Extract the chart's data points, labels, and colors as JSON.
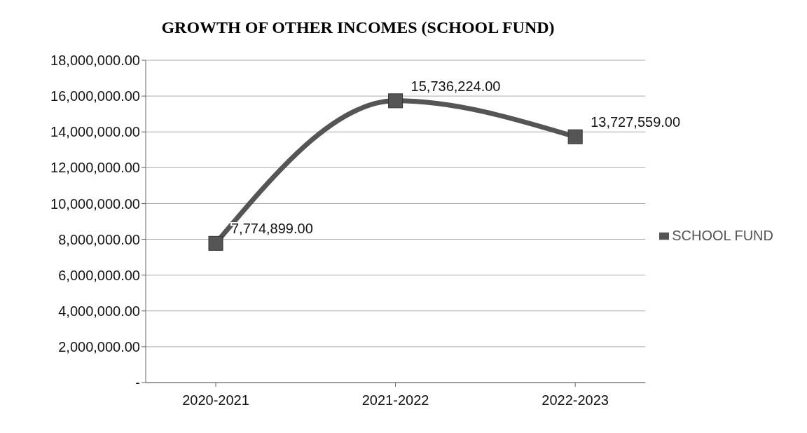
{
  "chart_data": {
    "type": "line",
    "title": "GROWTH OF OTHER INCOMES (SCHOOL FUND)",
    "categories": [
      "2020-2021",
      "2021-2022",
      "2022-2023"
    ],
    "series": [
      {
        "name": "SCHOOL FUND",
        "color": "#555555",
        "values": [
          7774899,
          15736224,
          13727559
        ],
        "value_labels": [
          "7,774,899.00",
          "15,736,224.00",
          "13,727,559.00"
        ]
      }
    ],
    "ylim": [
      0,
      18000000
    ],
    "yticks": [
      {
        "value": 0,
        "label": "-"
      },
      {
        "value": 2000000,
        "label": "2,000,000.00"
      },
      {
        "value": 4000000,
        "label": "4,000,000.00"
      },
      {
        "value": 6000000,
        "label": "6,000,000.00"
      },
      {
        "value": 8000000,
        "label": "8,000,000.00"
      },
      {
        "value": 10000000,
        "label": "10,000,000.00"
      },
      {
        "value": 12000000,
        "label": "12,000,000.00"
      },
      {
        "value": 14000000,
        "label": "14,000,000.00"
      },
      {
        "value": 16000000,
        "label": "16,000,000.00"
      },
      {
        "value": 18000000,
        "label": "18,000,000.00"
      }
    ],
    "grid": "y",
    "legend": "right",
    "marker": "square",
    "line_style": "solid"
  }
}
